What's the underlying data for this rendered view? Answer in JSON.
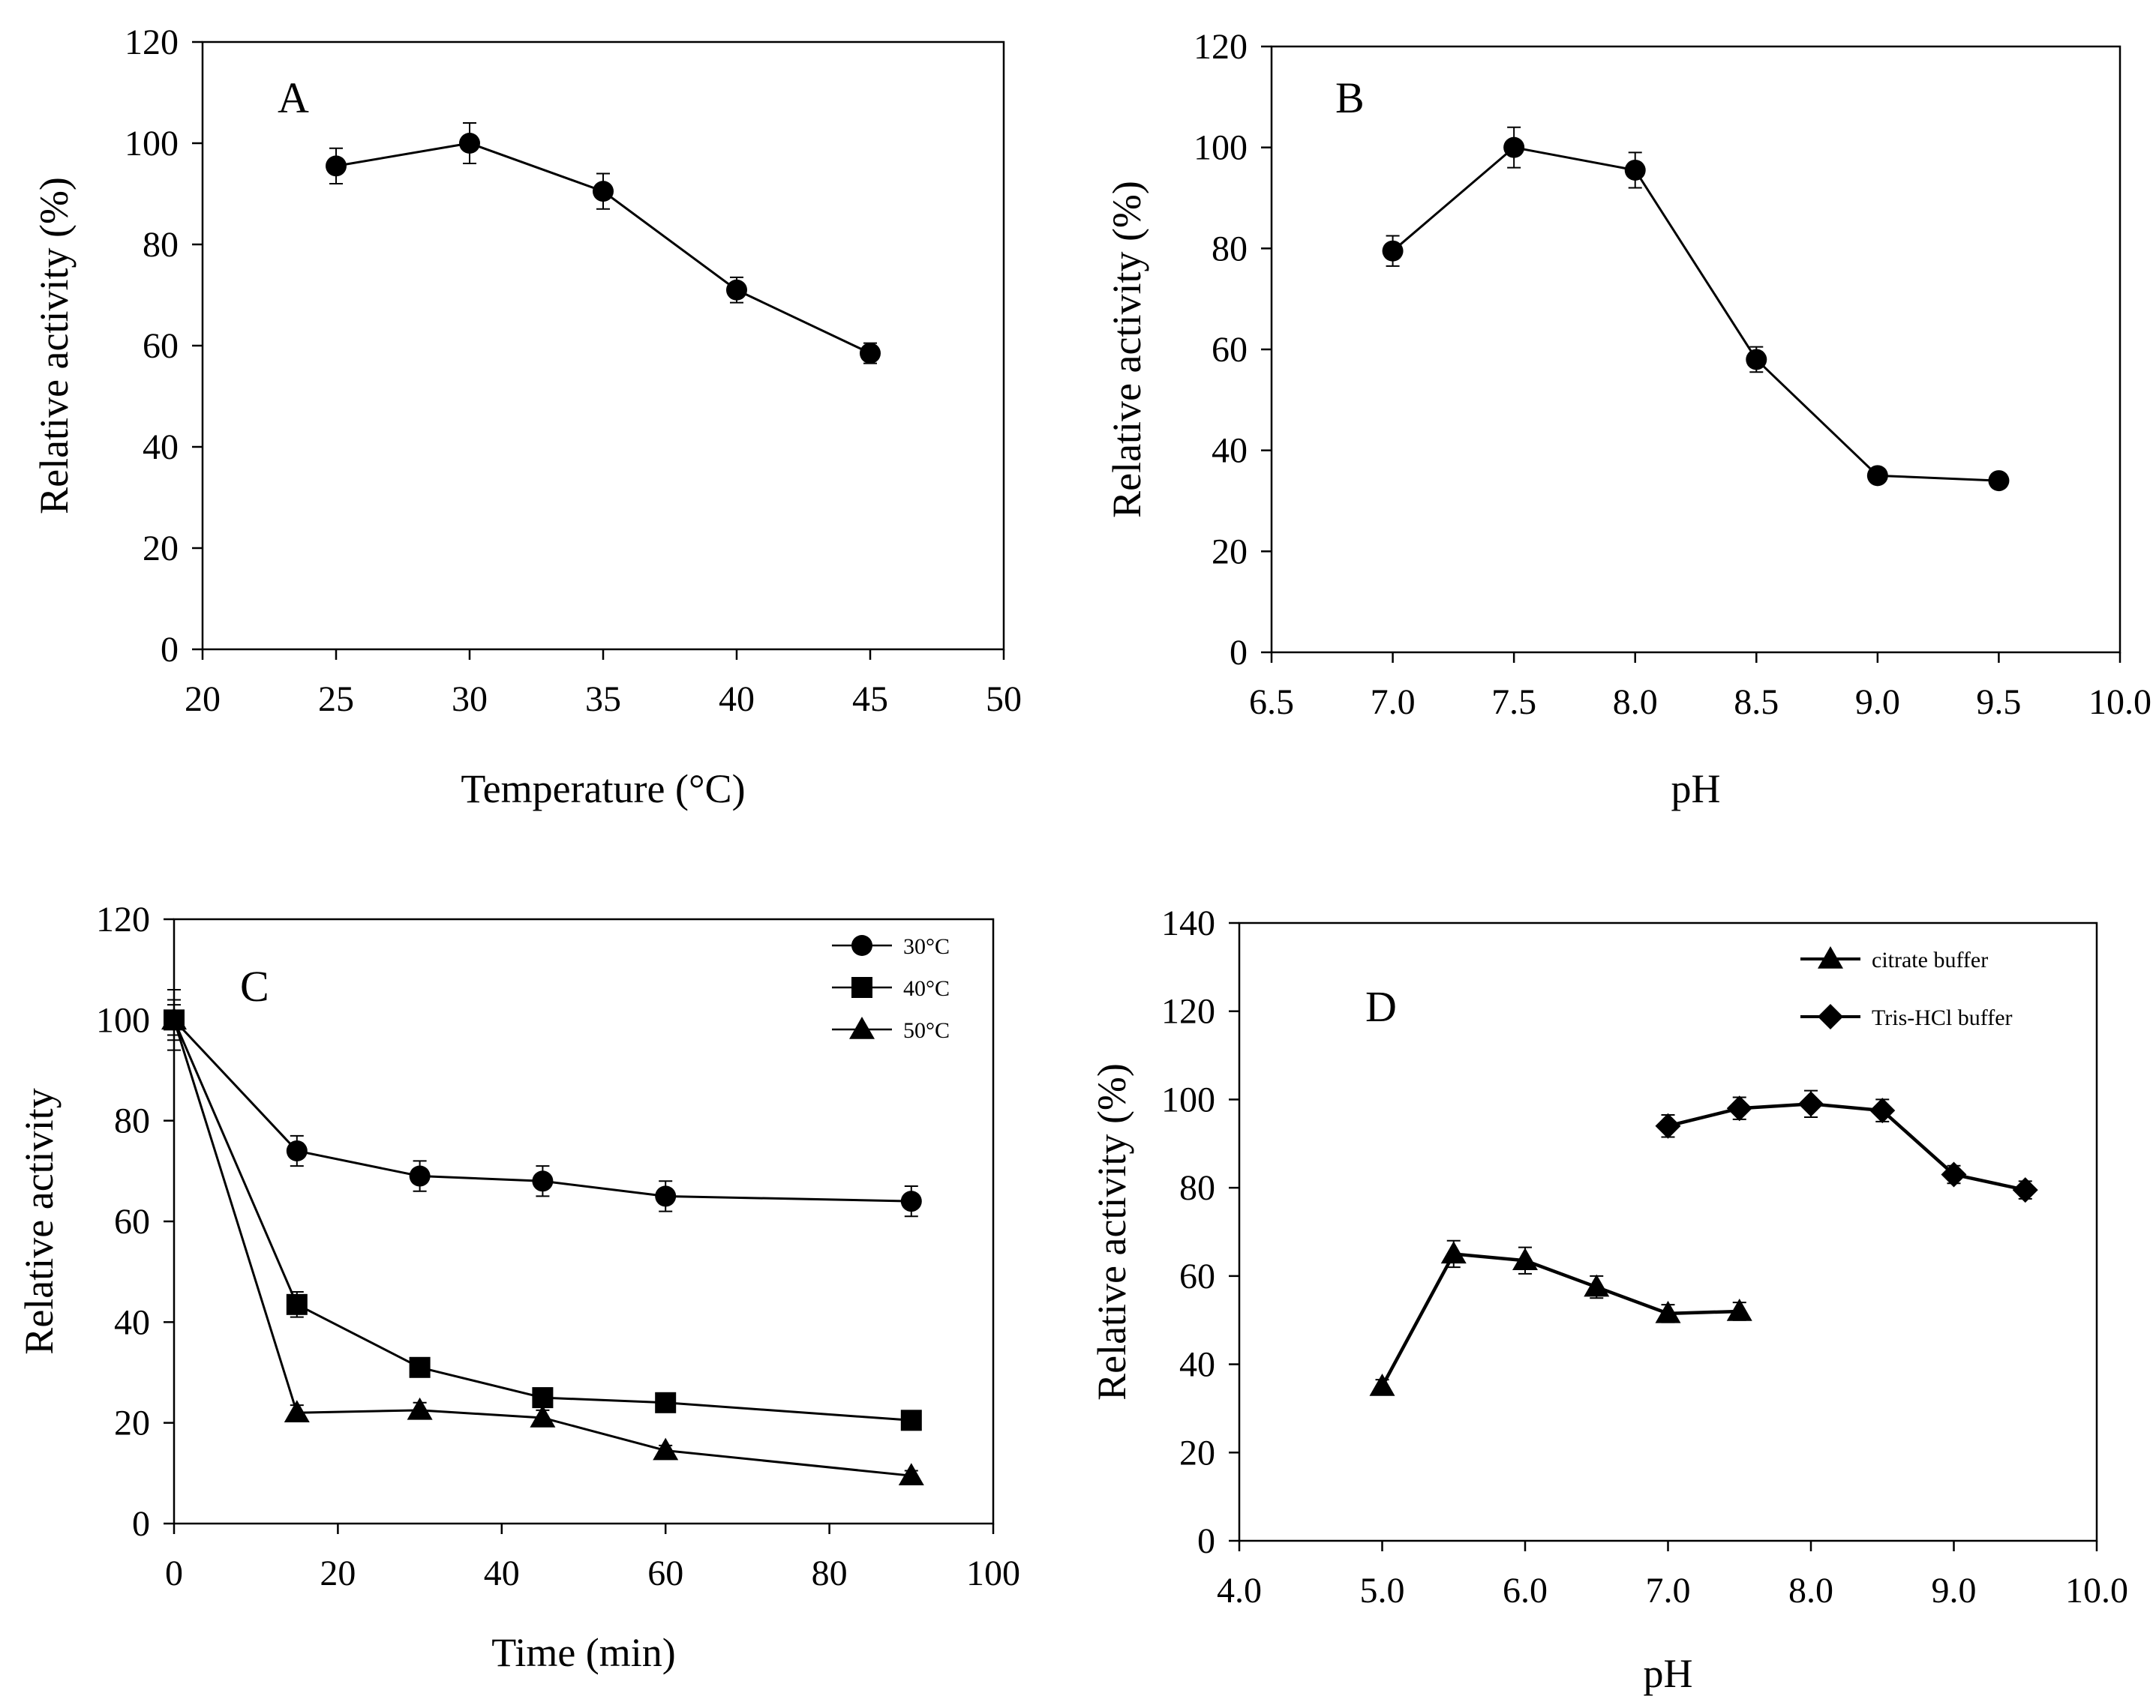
{
  "chart_data": [
    {
      "id": "A",
      "type": "line",
      "panel_label": "A",
      "xlabel": "Temperature (°C)",
      "ylabel": "Relative activity (%)",
      "xlim": [
        20,
        50
      ],
      "ylim": [
        0,
        120
      ],
      "xticks": [
        20,
        25,
        30,
        35,
        40,
        45,
        50
      ],
      "xtick_labels": [
        "20",
        "25",
        "30",
        "35",
        "40",
        "45",
        "50"
      ],
      "yticks": [
        0,
        20,
        40,
        60,
        80,
        100,
        120
      ],
      "ytick_labels": [
        "0",
        "20",
        "40",
        "60",
        "80",
        "100",
        "120"
      ],
      "series": [
        {
          "name": "",
          "marker": "circle",
          "x": [
            25,
            30,
            35,
            40,
            45
          ],
          "y": [
            95.5,
            100,
            90.5,
            71,
            58.5
          ],
          "err": [
            3.5,
            4,
            3.5,
            2.5,
            2
          ]
        }
      ]
    },
    {
      "id": "B",
      "type": "line",
      "panel_label": "B",
      "xlabel": "pH",
      "ylabel": "Relative activity (%)",
      "xlim": [
        6.5,
        10.0
      ],
      "ylim": [
        0,
        120
      ],
      "xticks": [
        6.5,
        7.0,
        7.5,
        8.0,
        8.5,
        9.0,
        9.5,
        10.0
      ],
      "xtick_labels": [
        "6.5",
        "7.0",
        "7.5",
        "8.0",
        "8.5",
        "9.0",
        "9.5",
        "10.0"
      ],
      "yticks": [
        0,
        20,
        40,
        60,
        80,
        100,
        120
      ],
      "ytick_labels": [
        "0",
        "20",
        "40",
        "60",
        "80",
        "100",
        "120"
      ],
      "series": [
        {
          "name": "",
          "marker": "circle",
          "x": [
            7.0,
            7.5,
            8.0,
            8.5,
            9.0,
            9.5
          ],
          "y": [
            79.5,
            100,
            95.5,
            58,
            35,
            34
          ],
          "err": [
            3,
            4,
            3.5,
            2.5,
            1,
            1
          ]
        }
      ]
    },
    {
      "id": "C",
      "type": "line",
      "panel_label": "C",
      "xlabel": "Time (min)",
      "ylabel": "Relative activity",
      "xlim": [
        0,
        100
      ],
      "ylim": [
        0,
        120
      ],
      "xticks": [
        0,
        20,
        40,
        60,
        80,
        100
      ],
      "xtick_labels": [
        "0",
        "20",
        "40",
        "60",
        "80",
        "100"
      ],
      "yticks": [
        0,
        20,
        40,
        60,
        80,
        100,
        120
      ],
      "ytick_labels": [
        "0",
        "20",
        "40",
        "60",
        "80",
        "100",
        "120"
      ],
      "legend_position": "top-right",
      "series": [
        {
          "name": "30°C",
          "marker": "circle",
          "x": [
            0,
            15,
            30,
            45,
            60,
            90
          ],
          "y": [
            100,
            74,
            69,
            68,
            65,
            64
          ],
          "err": [
            6,
            3,
            3,
            3,
            3,
            3
          ]
        },
        {
          "name": "40°C",
          "marker": "square",
          "x": [
            0,
            15,
            30,
            45,
            60,
            90
          ],
          "y": [
            100,
            43.5,
            31,
            25,
            24,
            20.5
          ],
          "err": [
            4,
            2.5,
            1.5,
            1.5,
            1,
            1
          ]
        },
        {
          "name": "50°C",
          "marker": "triangle",
          "x": [
            0,
            15,
            30,
            45,
            60,
            90
          ],
          "y": [
            100,
            22,
            22.5,
            21,
            14.5,
            9.5
          ],
          "err": [
            3,
            1.5,
            1.5,
            1.5,
            1,
            1
          ]
        }
      ]
    },
    {
      "id": "D",
      "type": "line",
      "panel_label": "D",
      "xlabel": "pH",
      "ylabel": "Relative activity (%)",
      "xlim": [
        4.0,
        10.0
      ],
      "ylim": [
        0,
        140
      ],
      "xticks": [
        4.0,
        5.0,
        6.0,
        7.0,
        8.0,
        9.0,
        10.0
      ],
      "xtick_labels": [
        "4.0",
        "5.0",
        "6.0",
        "7.0",
        "8.0",
        "9.0",
        "10.0"
      ],
      "yticks": [
        0,
        20,
        40,
        60,
        80,
        100,
        120,
        140
      ],
      "ytick_labels": [
        "0",
        "20",
        "40",
        "60",
        "80",
        "100",
        "120",
        "140"
      ],
      "legend_position": "top-right",
      "series": [
        {
          "name": "citrate buffer",
          "marker": "triangle",
          "x": [
            5.0,
            5.5,
            6.0,
            6.5,
            7.0,
            7.5
          ],
          "y": [
            35,
            65,
            63.5,
            57.5,
            51.5,
            52
          ],
          "err": [
            1.5,
            3,
            3,
            2.5,
            2,
            2
          ]
        },
        {
          "name": "Tris-HCl buffer",
          "marker": "diamond",
          "x": [
            7.0,
            7.5,
            8.0,
            8.5,
            9.0,
            9.5
          ],
          "y": [
            94,
            98,
            99,
            97.5,
            83,
            79.5
          ],
          "err": [
            2.5,
            2.5,
            3,
            2.5,
            2,
            2
          ]
        }
      ]
    }
  ]
}
